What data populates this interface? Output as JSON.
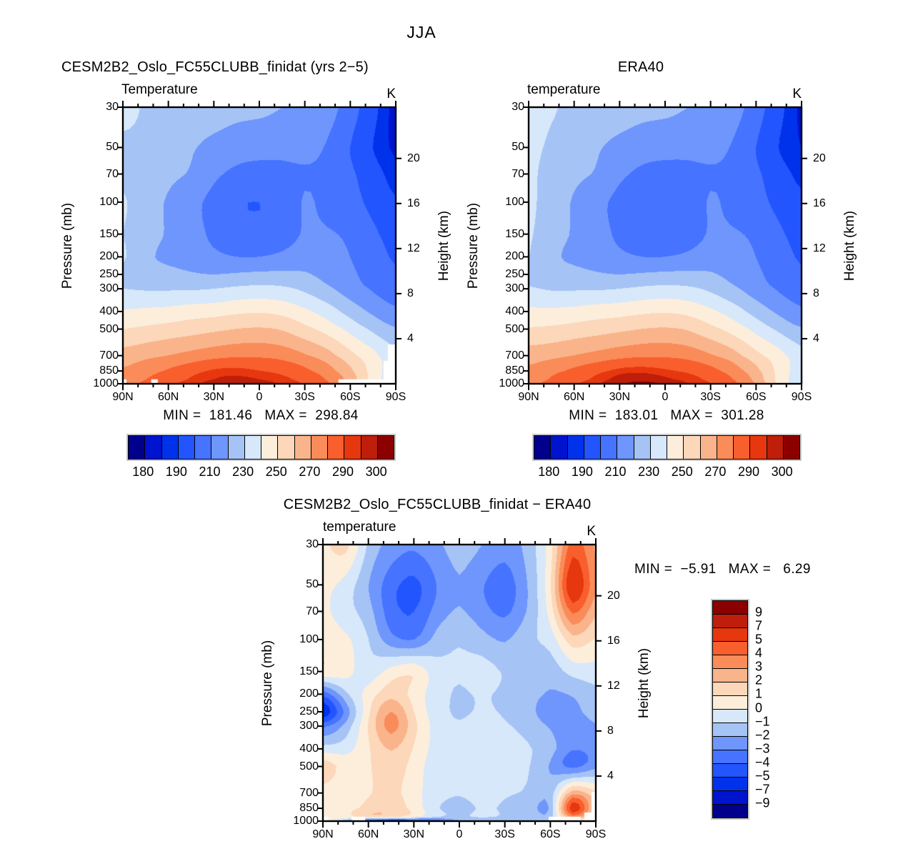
{
  "figure": {
    "title": "JJA"
  },
  "chart_data": {
    "type": "contour",
    "suptitle": "JJA",
    "x_axis": {
      "tick_labels": [
        "90N",
        "60N",
        "30N",
        "0",
        "30S",
        "60S",
        "90S"
      ],
      "ticks_deg": [
        90,
        60,
        30,
        0,
        -30,
        -60,
        -90
      ],
      "minor_step_deg": 10,
      "range_deg": [
        90,
        -90
      ]
    },
    "y_axis": {
      "label": "Pressure (mb)",
      "scale": "log",
      "ticks": [
        30,
        50,
        70,
        100,
        150,
        200,
        250,
        300,
        400,
        500,
        700,
        850,
        1000
      ],
      "tick_labels": [
        "30",
        "50",
        "70",
        "100",
        "150",
        "200",
        "250",
        "300",
        "400",
        "500",
        "700",
        "850",
        "1000"
      ]
    },
    "y2_axis": {
      "label": "Height (km)",
      "ticks_km": [
        20,
        16,
        12,
        8,
        4
      ],
      "tick_labels": [
        "20",
        "16",
        "12",
        "8",
        "4"
      ],
      "scale_height_km": 7
    },
    "palette": [
      "#00008C",
      "#0013CE",
      "#0032EB",
      "#2355FF",
      "#4673FF",
      "#6E96FC",
      "#A5C3F5",
      "#D7E8FA",
      "#FDEEDC",
      "#FCD7B9",
      "#FAB48C",
      "#FA8C5A",
      "#F85F2D",
      "#E6370F",
      "#BE1E0A",
      "#8C0000"
    ],
    "panels": [
      {
        "name": "model",
        "title": "CESM2B2_Oslo_FC55CLUBB_finidat (yrs 2−5)",
        "subtitle": "Temperature",
        "units": "K",
        "min": 181.46,
        "max": 298.84,
        "minmax_label": "MIN =  181.46   MAX =  298.84",
        "levels": [
          180,
          185,
          190,
          200,
          210,
          220,
          230,
          240,
          250,
          260,
          270,
          280,
          290,
          295,
          300
        ],
        "colorbar_tick_labels": [
          "180",
          "190",
          "210",
          "230",
          "250",
          "270",
          "290",
          "300"
        ],
        "colorbar_tick_positions": [
          1,
          3,
          5,
          7,
          9,
          11,
          13,
          15
        ],
        "lats": [
          90,
          75,
          60,
          45,
          30,
          15,
          0,
          -15,
          -30,
          -45,
          -60,
          -75,
          -90
        ],
        "pressures": [
          30,
          50,
          70,
          100,
          150,
          200,
          250,
          300,
          400,
          500,
          700,
          850,
          950,
          1000
        ],
        "values": [
          [
            233,
            229,
            228,
            226,
            225,
            223,
            222,
            220,
            218,
            214,
            205,
            193,
            183
          ],
          [
            228,
            228,
            225,
            221,
            217,
            214,
            213,
            213,
            213,
            209,
            200,
            190,
            184
          ],
          [
            228,
            226,
            222,
            219,
            212,
            208,
            207,
            207,
            209,
            208,
            202,
            194,
            187
          ],
          [
            231,
            224,
            219,
            213,
            207,
            201,
            200,
            202,
            211,
            207,
            204,
            197,
            191
          ],
          [
            230,
            224,
            219,
            214,
            208,
            204,
            203,
            205,
            211,
            211,
            208,
            202,
            196
          ],
          [
            231,
            222,
            218,
            215,
            212,
            210,
            210,
            212,
            215,
            214,
            210,
            204,
            199
          ],
          [
            228,
            224,
            223,
            221,
            220,
            221,
            222,
            222,
            221,
            217,
            212,
            206,
            201
          ],
          [
            230,
            229,
            229,
            229,
            230,
            232,
            233,
            232,
            228,
            222,
            215,
            209,
            204
          ],
          [
            241,
            242,
            243,
            245,
            246,
            248,
            249,
            247,
            242,
            235,
            226,
            218,
            212
          ],
          [
            250,
            252,
            254,
            256,
            258,
            260,
            261,
            259,
            253,
            246,
            237,
            228,
            221
          ],
          [
            264,
            267,
            270,
            273,
            276,
            278,
            278,
            276,
            271,
            264,
            253,
            243,
            233
          ],
          [
            271,
            276,
            281,
            286,
            291,
            292,
            290,
            287,
            282,
            274,
            262,
            246,
            234
          ],
          [
            274,
            280,
            285,
            291,
            295,
            296,
            295,
            292,
            287,
            279,
            266,
            246,
            233
          ],
          [
            276,
            282,
            288,
            293,
            297,
            298,
            297,
            294,
            289,
            281,
            268,
            247,
            232
          ]
        ],
        "mask_gaps": [
          [
            0,
            0.984,
            0.013,
            0.016
          ],
          [
            0.104,
            0.984,
            0.024,
            0.016
          ],
          [
            0.79,
            0.984,
            0.21,
            0.016
          ],
          [
            0.971,
            0.858,
            0.029,
            0.142
          ],
          [
            0.955,
            0.917,
            0.045,
            0.083
          ]
        ]
      },
      {
        "name": "era40",
        "title": "ERA40",
        "subtitle": "temperature",
        "units": "K",
        "min": 183.01,
        "max": 301.28,
        "minmax_label": "MIN =  183.01   MAX =  301.28",
        "levels": [
          180,
          185,
          190,
          200,
          210,
          220,
          230,
          240,
          250,
          260,
          270,
          280,
          290,
          295,
          300
        ],
        "colorbar_tick_labels": [
          "180",
          "190",
          "210",
          "230",
          "250",
          "270",
          "290",
          "300"
        ],
        "colorbar_tick_positions": [
          1,
          3,
          5,
          7,
          9,
          11,
          13,
          15
        ],
        "lats": [
          90,
          75,
          60,
          45,
          30,
          15,
          0,
          -15,
          -30,
          -45,
          -60,
          -75,
          -90
        ],
        "pressures": [
          30,
          50,
          70,
          100,
          150,
          200,
          250,
          300,
          400,
          500,
          700,
          850,
          950,
          1000
        ],
        "values": [
          [
            235,
            231,
            228,
            226,
            225,
            223,
            222,
            220,
            218,
            214,
            205,
            193,
            184
          ],
          [
            233,
            228,
            225,
            221,
            217,
            214,
            213,
            213,
            213,
            209,
            200,
            190,
            185
          ],
          [
            232,
            226,
            222,
            219,
            212,
            208,
            207,
            207,
            209,
            208,
            202,
            194,
            188
          ],
          [
            232,
            225,
            219,
            213,
            207,
            202,
            201,
            203,
            211,
            207,
            204,
            197,
            192
          ],
          [
            231,
            224,
            219,
            214,
            208,
            204,
            203,
            205,
            211,
            211,
            208,
            202,
            196
          ],
          [
            230,
            222,
            218,
            215,
            212,
            210,
            210,
            212,
            215,
            214,
            210,
            204,
            199
          ],
          [
            228,
            224,
            223,
            221,
            220,
            221,
            222,
            222,
            221,
            217,
            212,
            206,
            201
          ],
          [
            231,
            229,
            229,
            229,
            230,
            232,
            233,
            232,
            228,
            222,
            215,
            209,
            204
          ],
          [
            242,
            242,
            243,
            245,
            246,
            248,
            249,
            247,
            242,
            235,
            226,
            218,
            212
          ],
          [
            251,
            252,
            254,
            256,
            258,
            260,
            261,
            259,
            253,
            246,
            237,
            228,
            221
          ],
          [
            265,
            267,
            270,
            273,
            276,
            278,
            278,
            276,
            271,
            264,
            253,
            244,
            234
          ],
          [
            272,
            277,
            282,
            287,
            292,
            293,
            291,
            288,
            283,
            275,
            263,
            247,
            235
          ],
          [
            275,
            281,
            286,
            292,
            297,
            298,
            296,
            293,
            288,
            280,
            267,
            247,
            234
          ],
          [
            277,
            283,
            289,
            294,
            299,
            301.3,
            299,
            295,
            290,
            282,
            269,
            248,
            233
          ]
        ],
        "mask_gaps": []
      },
      {
        "name": "difference",
        "title": "CESM2B2_Oslo_FC55CLUBB_finidat − ERA40",
        "subtitle": "temperature",
        "units": "K",
        "min": -5.91,
        "max": 6.29,
        "minmax_label": "MIN =  −5.91   MAX =   6.29",
        "levels": [
          -9,
          -7,
          -5,
          -4,
          -3,
          -2,
          -1,
          0,
          1,
          2,
          3,
          4,
          5,
          7,
          9
        ],
        "colorbar_tick_labels": [
          "9",
          "7",
          "5",
          "4",
          "3",
          "2",
          "1",
          "0",
          "−1",
          "−2",
          "−3",
          "−4",
          "−5",
          "−7",
          "−9"
        ],
        "colorbar_tick_positions": [
          1,
          2,
          3,
          4,
          5,
          6,
          7,
          8,
          9,
          10,
          11,
          12,
          13,
          14,
          15
        ],
        "lats": [
          90,
          75,
          60,
          45,
          30,
          15,
          0,
          -15,
          -30,
          -45,
          -60,
          -75,
          -90
        ],
        "pressures": [
          30,
          50,
          70,
          100,
          150,
          200,
          250,
          300,
          400,
          500,
          700,
          850,
          950,
          1000
        ],
        "values": [
          [
            0.8,
            1.3,
            -1.2,
            -2.4,
            -2.8,
            -2.2,
            -1.6,
            -2.0,
            -2.6,
            -1.6,
            0.5,
            4.5,
            2.8
          ],
          [
            0.3,
            -0.4,
            -2.0,
            -3.6,
            -4.3,
            -3.0,
            -2.1,
            -2.9,
            -3.5,
            -2.0,
            0.8,
            6.1,
            3.2
          ],
          [
            0.2,
            -0.6,
            -1.6,
            -3.6,
            -4.0,
            -2.6,
            -1.9,
            -2.6,
            -3.2,
            -1.9,
            0.4,
            4.2,
            2.2
          ],
          [
            0.5,
            0.2,
            -1.0,
            -2.6,
            -3.0,
            -1.6,
            -1.1,
            -1.6,
            -2.1,
            -1.2,
            -0.6,
            1.6,
            0.9
          ],
          [
            0.8,
            0.4,
            -0.6,
            0.4,
            0.8,
            -0.6,
            -0.9,
            -0.6,
            -1.1,
            -1.3,
            -1.6,
            -0.6,
            -0.4
          ],
          [
            -3.6,
            -1.2,
            0.4,
            1.6,
            0.6,
            -0.6,
            -1.1,
            -0.9,
            -1.2,
            -1.6,
            -2.1,
            -1.9,
            -1.3
          ],
          [
            -5.8,
            -2.6,
            0.8,
            3.0,
            1.0,
            -0.6,
            -1.1,
            -0.9,
            -1.1,
            -1.6,
            -2.6,
            -2.3,
            -1.6
          ],
          [
            -3.2,
            -1.6,
            1.1,
            3.4,
            1.3,
            -0.4,
            -0.9,
            -0.6,
            -0.9,
            -1.3,
            -2.1,
            -2.6,
            -2.1
          ],
          [
            -0.6,
            -0.4,
            0.9,
            2.1,
            0.9,
            -0.4,
            -0.6,
            -0.4,
            -0.6,
            -0.9,
            -1.6,
            -2.9,
            -2.6
          ],
          [
            1.6,
            0.6,
            0.9,
            1.6,
            0.6,
            -0.6,
            -0.6,
            -0.4,
            -0.6,
            -0.9,
            -2.1,
            -3.3,
            -2.3
          ],
          [
            0.6,
            0.4,
            0.9,
            1.3,
            0.4,
            -0.6,
            -0.9,
            -0.6,
            -0.9,
            -1.1,
            -1.6,
            2.5,
            1.2
          ],
          [
            0.4,
            0.6,
            1.3,
            1.6,
            0.6,
            -0.9,
            -1.3,
            -0.9,
            -1.1,
            -1.3,
            -1.9,
            5.8,
            1.6
          ],
          [
            0.8,
            0.6,
            1.6,
            1.3,
            0.4,
            -0.9,
            -1.1,
            -0.9,
            -1.1,
            -1.3,
            -1.6,
            3.5,
            0.8
          ],
          [
            0.2,
            -1.6,
            -4.6,
            -5.2,
            -4.6,
            -3.6,
            -2.1,
            -1.6,
            -1.9,
            -1.6,
            -1.3,
            0.5,
            -0.6
          ]
        ],
        "mask_gaps": [
          [
            0,
            0.984,
            0.02,
            0.016
          ],
          [
            0.105,
            0.984,
            0.05,
            0.016
          ],
          [
            0.827,
            0.984,
            0.118,
            0.016
          ],
          [
            0.984,
            0.894,
            0.016,
            0.106
          ],
          [
            0.958,
            0.969,
            0.042,
            0.031
          ]
        ]
      }
    ]
  }
}
